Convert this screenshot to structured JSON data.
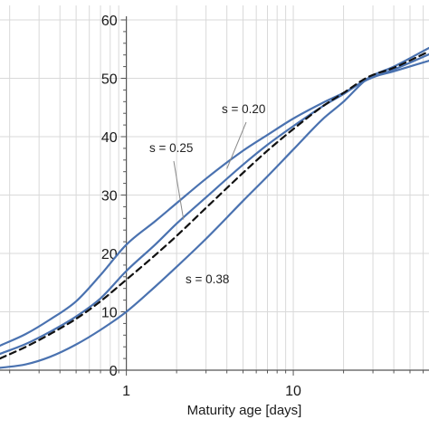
{
  "chart_data": {
    "type": "line",
    "xlabel": "Maturity age [days]",
    "ylabel": "",
    "title": "",
    "x_scale": "log",
    "xlim": [
      0.175,
      65
    ],
    "ylim": [
      0,
      60
    ],
    "x_tick_labels": [
      "1",
      "10"
    ],
    "x_tick_values": [
      1,
      10
    ],
    "y_ticks": [
      0,
      10,
      20,
      30,
      40,
      50,
      60
    ],
    "grid": true,
    "legend": "none",
    "colors": {
      "series": "#4a72b0",
      "reference": "#111111",
      "grid": "#d9d9d9"
    },
    "series": [
      {
        "name": "s = 0.20",
        "style": "solid",
        "x": [
          0.175,
          0.25,
          0.35,
          0.5,
          0.7,
          1,
          1.5,
          2,
          3,
          5,
          7,
          10,
          15,
          20,
          28,
          40,
          65
        ],
        "values": [
          4.2,
          6.2,
          8.7,
          11.8,
          16.3,
          21.5,
          25.6,
          28.6,
          32.8,
          37.6,
          40.3,
          43.1,
          45.8,
          47.5,
          49.8,
          51.5,
          54.1
        ]
      },
      {
        "name": "s = 0.25",
        "style": "solid",
        "x": [
          0.175,
          0.25,
          0.35,
          0.5,
          0.7,
          1,
          1.5,
          2,
          3,
          5,
          7,
          10,
          15,
          20,
          28,
          40,
          65
        ],
        "values": [
          2.8,
          4.5,
          6.6,
          9.2,
          12.3,
          17.0,
          21.6,
          25.1,
          29.6,
          35.2,
          38.6,
          41.8,
          45.2,
          47.3,
          49.9,
          51.2,
          53.0
        ]
      },
      {
        "name": "s = 0.38",
        "style": "solid",
        "x": [
          0.175,
          0.25,
          0.35,
          0.5,
          0.7,
          1,
          1.5,
          2,
          3,
          5,
          7,
          10,
          15,
          20,
          28,
          40,
          65
        ],
        "values": [
          0.4,
          1.0,
          2.3,
          4.4,
          6.9,
          10.0,
          14.4,
          17.7,
          22.5,
          29.0,
          33.2,
          37.8,
          43.0,
          46.0,
          50.0,
          52.0,
          55.2
        ]
      },
      {
        "name": "",
        "style": "dashed",
        "x": [
          0.175,
          0.25,
          0.35,
          0.5,
          0.7,
          1,
          1.5,
          2,
          3,
          5,
          7,
          10,
          15,
          20,
          28,
          40,
          65
        ],
        "values": [
          2.0,
          4.0,
          6.2,
          8.8,
          11.8,
          15.5,
          19.8,
          23.0,
          27.8,
          33.8,
          37.6,
          41.3,
          45.2,
          47.5,
          50.2,
          51.8,
          54.6
        ]
      }
    ],
    "annotations": [
      {
        "text": "s = 0.20",
        "target_series": 0,
        "target_x": 4.0,
        "target_y": 34.5
      },
      {
        "text": "s = 0.25",
        "target_series": 1,
        "target_x": 2.2,
        "target_y": 25.8
      },
      {
        "text": "s = 0.38",
        "target_series": 2
      }
    ]
  }
}
